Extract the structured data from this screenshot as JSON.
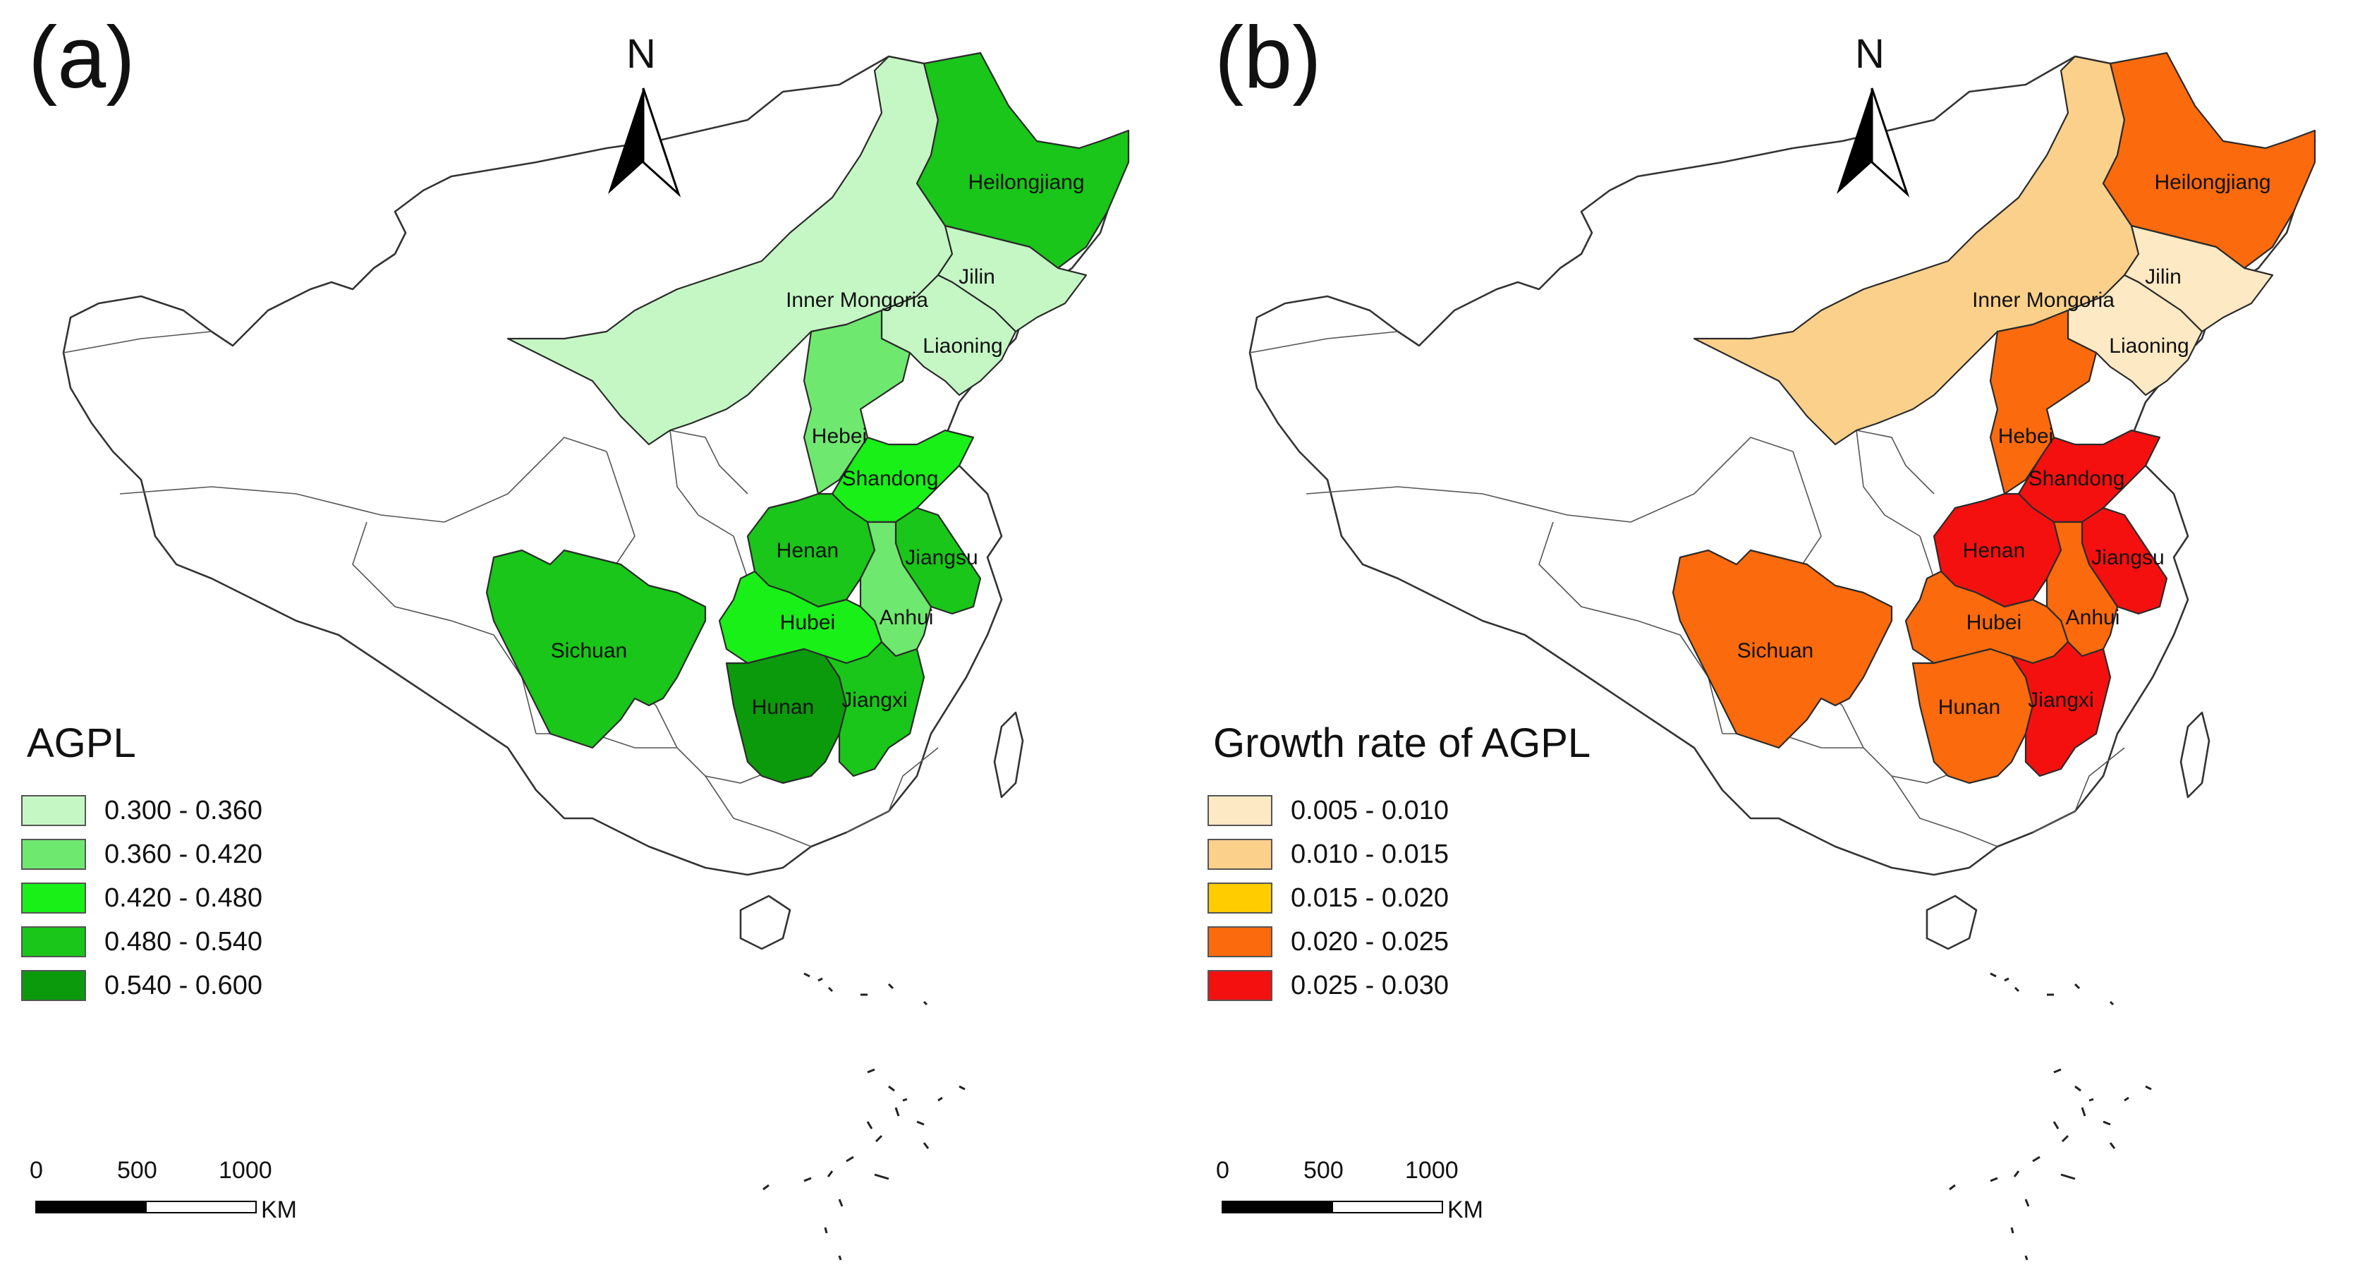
{
  "panels": [
    {
      "label": "(a)",
      "north": "N",
      "legend_title": "AGPL",
      "legend": [
        {
          "range": "0.300 - 0.360",
          "color": "#c5f7c5"
        },
        {
          "range": "0.360 - 0.420",
          "color": "#6fe86f"
        },
        {
          "range": "0.420 - 0.480",
          "color": "#18f018"
        },
        {
          "range": "0.480 - 0.540",
          "color": "#19c619"
        },
        {
          "range": "0.540 - 0.600",
          "color": "#0b9a0b"
        }
      ],
      "provinces": {
        "Heilongjiang": "#19c619",
        "Jilin": "#c5f7c5",
        "Liaoning": "#c5f7c5",
        "Inner Mongoria": "#c5f7c5",
        "Hebei": "#6fe86f",
        "Shandong": "#18f018",
        "Henan": "#19c619",
        "Jiangsu": "#19c619",
        "Anhui": "#6fe86f",
        "Hubei": "#18f018",
        "Sichuan": "#19c619",
        "Hunan": "#0b9a0b",
        "Jiangxi": "#19c619"
      }
    },
    {
      "label": "(b)",
      "north": "N",
      "legend_title": "Growth rate of AGPL",
      "legend": [
        {
          "range": "0.005 - 0.010",
          "color": "#fde9c4"
        },
        {
          "range": "0.010 - 0.015",
          "color": "#fbd08a"
        },
        {
          "range": "0.015 - 0.020",
          "color": "#ffcc00"
        },
        {
          "range": "0.020 - 0.025",
          "color": "#fb6a0c"
        },
        {
          "range": "0.025 - 0.030",
          "color": "#f51010"
        }
      ],
      "provinces": {
        "Heilongjiang": "#fb6a0c",
        "Jilin": "#fde9c4",
        "Liaoning": "#fde9c4",
        "Inner Mongoria": "#fbd08a",
        "Hebei": "#fb6a0c",
        "Shandong": "#f51010",
        "Henan": "#f51010",
        "Jiangsu": "#f51010",
        "Anhui": "#fb6a0c",
        "Hubei": "#fb6a0c",
        "Sichuan": "#fb6a0c",
        "Hunan": "#fb6a0c",
        "Jiangxi": "#f51010"
      }
    }
  ],
  "scalebar": {
    "ticks": [
      "0",
      "500",
      "1000"
    ],
    "unit": "KM"
  }
}
